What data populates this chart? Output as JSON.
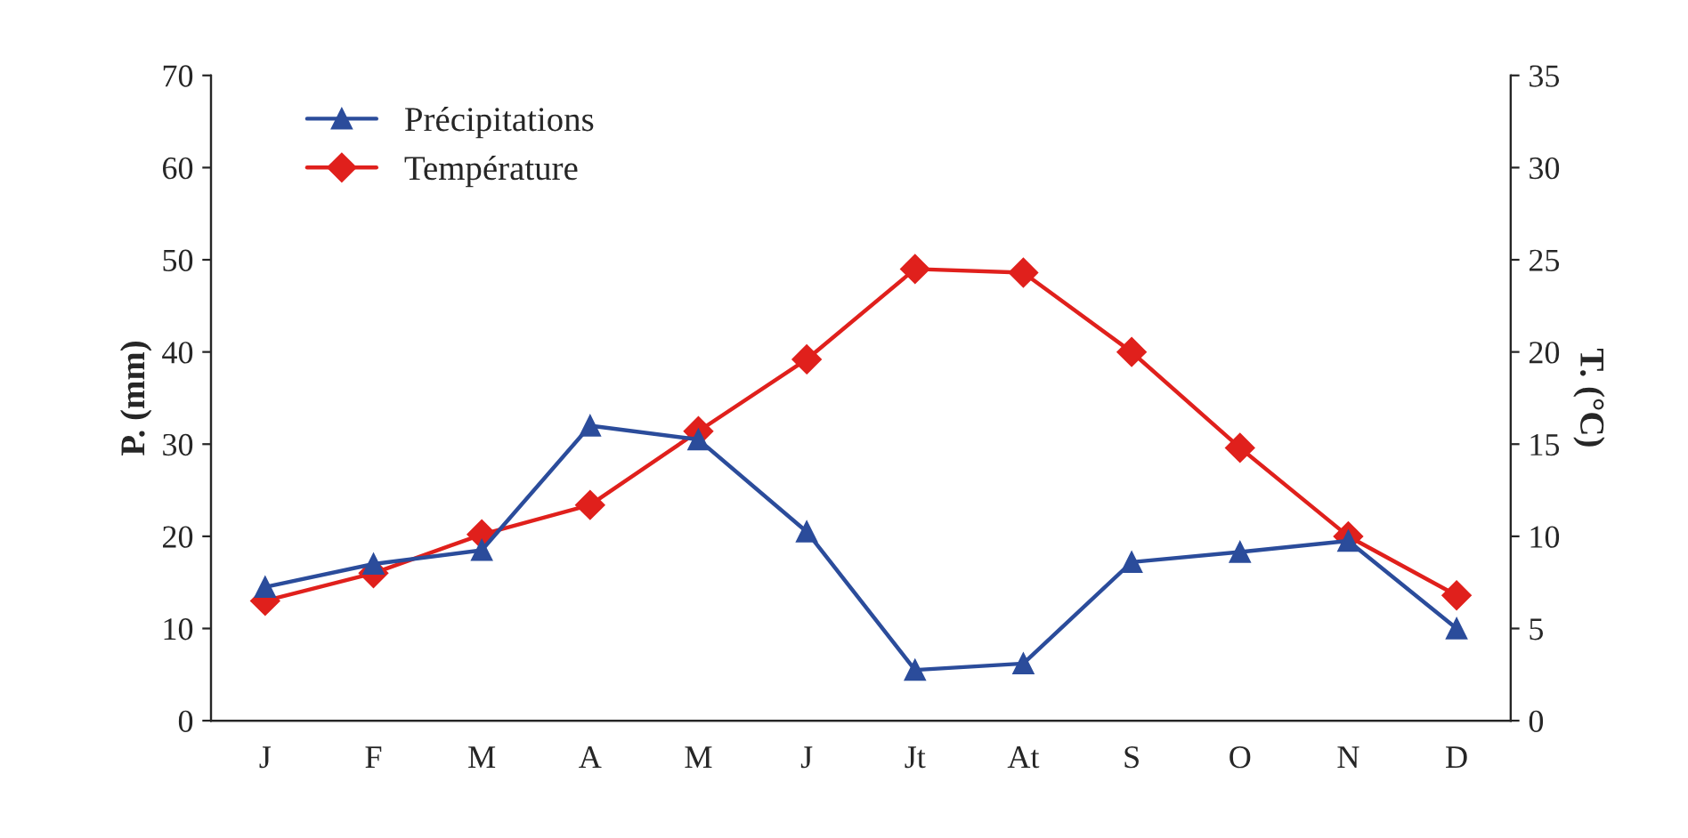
{
  "chart_data": {
    "type": "line",
    "ylabel": "P. (mm)",
    "y2label": "T. (°C)",
    "categories": [
      "J",
      "F",
      "M",
      "A",
      "M",
      "J",
      "Jt",
      "At",
      "S",
      "O",
      "N",
      "D"
    ],
    "series": [
      {
        "name": "Précipitations",
        "color": "#2b4c9b",
        "marker": "triangle",
        "values": [
          14.5,
          17,
          18.5,
          32,
          30.5,
          20.5,
          5.5,
          6.2,
          17.2,
          18.3,
          19.5,
          10
        ]
      },
      {
        "name": "Température",
        "color": "#e0201c",
        "marker": "diamond",
        "axis": "y2",
        "values": [
          6.5,
          8,
          10.1,
          11.7,
          15.7,
          19.6,
          24.5,
          24.3,
          20,
          14.8,
          10,
          6.8
        ]
      }
    ],
    "ylim": [
      0,
      70
    ],
    "yticks": [
      0,
      10,
      20,
      30,
      40,
      50,
      60,
      70
    ],
    "y2lim": [
      0,
      35
    ],
    "y2ticks": [
      0,
      5,
      10,
      15,
      20,
      25,
      30,
      35
    ],
    "grid": false,
    "legend": "top left",
    "line_style": "solid"
  }
}
